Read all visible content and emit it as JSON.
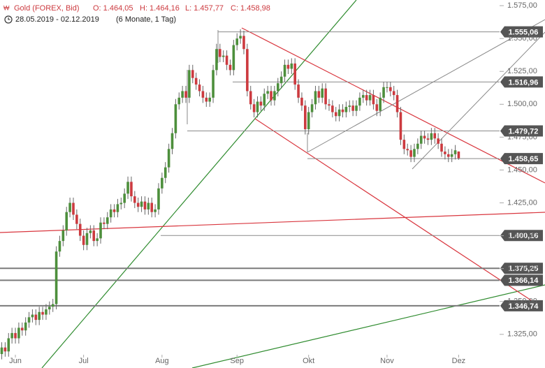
{
  "chart_data": {
    "type": "candlestick",
    "header": {
      "title": "Gold (FOREX, Bid)",
      "open": "O: 1.464,05",
      "high": "H: 1.464,16",
      "low": "L: 1.457,77",
      "close": "C: 1.458,98",
      "range": "28.05.2019 - 02.12.2019",
      "period": "(6 Monate, 1 Tag)"
    },
    "categories": [
      null,
      null,
      null,
      null,
      "Jun",
      null,
      null,
      null,
      null,
      null,
      null,
      null,
      null,
      null,
      null,
      null,
      null,
      null,
      null,
      null,
      null,
      null,
      null,
      null,
      "Jul",
      null,
      null,
      null,
      null,
      null,
      null,
      null,
      null,
      null,
      null,
      null,
      null,
      null,
      null,
      null,
      null,
      null,
      null,
      null,
      null,
      null,
      null,
      "Aug",
      null,
      null,
      null,
      null,
      null,
      null,
      null,
      null,
      null,
      null,
      null,
      null,
      null,
      null,
      null,
      null,
      null,
      null,
      null,
      null,
      null,
      "Sep",
      null,
      null,
      null,
      null,
      null,
      null,
      null,
      null,
      null,
      null,
      null,
      null,
      null,
      null,
      null,
      null,
      null,
      null,
      null,
      null,
      "Okt",
      null,
      null,
      null,
      null,
      null,
      null,
      null,
      null,
      null,
      null,
      null,
      null,
      null,
      null,
      null,
      null,
      null,
      null,
      null,
      null,
      null,
      null,
      "Nov",
      null,
      null,
      null,
      null,
      null,
      null,
      null,
      null,
      null,
      null,
      null,
      null,
      null,
      null,
      null,
      null,
      null,
      null,
      null,
      null,
      "Dez"
    ],
    "ohlc": [
      [
        1310,
        1319,
        1306,
        1315
      ],
      [
        1315,
        1319,
        1308,
        1312
      ],
      [
        1312,
        1326,
        1308,
        1322
      ],
      [
        1322,
        1330,
        1318,
        1326
      ],
      [
        1326,
        1330,
        1318,
        1322
      ],
      [
        1322,
        1334,
        1318,
        1330
      ],
      [
        1330,
        1334,
        1324,
        1328
      ],
      [
        1328,
        1338,
        1324,
        1334
      ],
      [
        1334,
        1342,
        1330,
        1338
      ],
      [
        1338,
        1344,
        1334,
        1340
      ],
      [
        1340,
        1344,
        1332,
        1336
      ],
      [
        1336,
        1346,
        1332,
        1342
      ],
      [
        1342,
        1346,
        1336,
        1340
      ],
      [
        1340,
        1348,
        1336,
        1344
      ],
      [
        1344,
        1350,
        1340,
        1346
      ],
      [
        1346,
        1352,
        1342,
        1348
      ],
      [
        1348,
        1392,
        1344,
        1388
      ],
      [
        1388,
        1400,
        1384,
        1396
      ],
      [
        1396,
        1408,
        1392,
        1404
      ],
      [
        1404,
        1422,
        1400,
        1418
      ],
      [
        1418,
        1429,
        1414,
        1425
      ],
      [
        1425,
        1429,
        1412,
        1416
      ],
      [
        1416,
        1420,
        1405,
        1409
      ],
      [
        1409,
        1413,
        1396,
        1400
      ],
      [
        1400,
        1404,
        1389,
        1393
      ],
      [
        1393,
        1406,
        1389,
        1402
      ],
      [
        1402,
        1408,
        1398,
        1404
      ],
      [
        1404,
        1408,
        1392,
        1396
      ],
      [
        1396,
        1402,
        1392,
        1398
      ],
      [
        1398,
        1414,
        1394,
        1410
      ],
      [
        1410,
        1414,
        1405,
        1409
      ],
      [
        1409,
        1418,
        1405,
        1414
      ],
      [
        1414,
        1424,
        1410,
        1420
      ],
      [
        1420,
        1424,
        1414,
        1418
      ],
      [
        1418,
        1428,
        1414,
        1424
      ],
      [
        1424,
        1429,
        1420,
        1425
      ],
      [
        1425,
        1436,
        1421,
        1432
      ],
      [
        1432,
        1445,
        1428,
        1441
      ],
      [
        1441,
        1445,
        1426,
        1430
      ],
      [
        1430,
        1434,
        1421,
        1425
      ],
      [
        1425,
        1429,
        1418,
        1422
      ],
      [
        1422,
        1430,
        1418,
        1426
      ],
      [
        1426,
        1430,
        1416,
        1420
      ],
      [
        1420,
        1429,
        1416,
        1425
      ],
      [
        1425,
        1429,
        1414,
        1418
      ],
      [
        1418,
        1424,
        1414,
        1420
      ],
      [
        1420,
        1440,
        1416,
        1436
      ],
      [
        1436,
        1448,
        1432,
        1444
      ],
      [
        1444,
        1456,
        1440,
        1452
      ],
      [
        1452,
        1470,
        1448,
        1466
      ],
      [
        1466,
        1482,
        1462,
        1478
      ],
      [
        1478,
        1504,
        1474,
        1500
      ],
      [
        1500,
        1509,
        1496,
        1505
      ],
      [
        1505,
        1514,
        1501,
        1510
      ],
      [
        1510,
        1514,
        1501,
        1505
      ],
      [
        1505,
        1530,
        1501,
        1526
      ],
      [
        1526,
        1530,
        1516,
        1520
      ],
      [
        1520,
        1524,
        1511,
        1515
      ],
      [
        1515,
        1519,
        1506,
        1510
      ],
      [
        1510,
        1514,
        1501,
        1505
      ],
      [
        1505,
        1509,
        1498,
        1502
      ],
      [
        1502,
        1509,
        1498,
        1505
      ],
      [
        1505,
        1530,
        1501,
        1526
      ],
      [
        1526,
        1546,
        1522,
        1542
      ],
      [
        1542,
        1546,
        1532,
        1536
      ],
      [
        1536,
        1541,
        1532,
        1537
      ],
      [
        1537,
        1541,
        1526,
        1530
      ],
      [
        1530,
        1534,
        1522,
        1526
      ],
      [
        1526,
        1549,
        1522,
        1545
      ],
      [
        1545,
        1554,
        1541,
        1550
      ],
      [
        1550,
        1557,
        1546,
        1552
      ],
      [
        1552,
        1556,
        1538,
        1542
      ],
      [
        1542,
        1546,
        1506,
        1510
      ],
      [
        1510,
        1514,
        1496,
        1500
      ],
      [
        1500,
        1504,
        1490,
        1494
      ],
      [
        1494,
        1506,
        1490,
        1502
      ],
      [
        1502,
        1506,
        1495,
        1499
      ],
      [
        1499,
        1512,
        1495,
        1508
      ],
      [
        1508,
        1514,
        1504,
        1510
      ],
      [
        1510,
        1514,
        1499,
        1503
      ],
      [
        1503,
        1514,
        1499,
        1510
      ],
      [
        1510,
        1520,
        1506,
        1516
      ],
      [
        1516,
        1525,
        1512,
        1521
      ],
      [
        1521,
        1534,
        1517,
        1530
      ],
      [
        1530,
        1534,
        1523,
        1527
      ],
      [
        1527,
        1535,
        1523,
        1531
      ],
      [
        1531,
        1535,
        1511,
        1515
      ],
      [
        1515,
        1519,
        1501,
        1505
      ],
      [
        1505,
        1509,
        1495,
        1499
      ],
      [
        1499,
        1503,
        1477,
        1481
      ],
      [
        1481,
        1498,
        1477,
        1494
      ],
      [
        1494,
        1504,
        1490,
        1500
      ],
      [
        1500,
        1514,
        1496,
        1510
      ],
      [
        1510,
        1514,
        1501,
        1505
      ],
      [
        1505,
        1516,
        1501,
        1512
      ],
      [
        1512,
        1516,
        1496,
        1500
      ],
      [
        1500,
        1504,
        1495,
        1499
      ],
      [
        1499,
        1503,
        1490,
        1494
      ],
      [
        1494,
        1498,
        1487,
        1491
      ],
      [
        1491,
        1500,
        1487,
        1496
      ],
      [
        1496,
        1500,
        1490,
        1494
      ],
      [
        1494,
        1502,
        1490,
        1498
      ],
      [
        1498,
        1503,
        1494,
        1499
      ],
      [
        1499,
        1503,
        1491,
        1495
      ],
      [
        1495,
        1503,
        1491,
        1499
      ],
      [
        1499,
        1509,
        1495,
        1505
      ],
      [
        1505,
        1511,
        1501,
        1507
      ],
      [
        1507,
        1511,
        1499,
        1503
      ],
      [
        1503,
        1511,
        1499,
        1507
      ],
      [
        1507,
        1511,
        1496,
        1500
      ],
      [
        1500,
        1504,
        1491,
        1495
      ],
      [
        1495,
        1509,
        1491,
        1505
      ],
      [
        1505,
        1517,
        1501,
        1513
      ],
      [
        1513,
        1517,
        1509,
        1513
      ],
      [
        1513,
        1517,
        1506,
        1510
      ],
      [
        1510,
        1514,
        1503,
        1507
      ],
      [
        1507,
        1511,
        1490,
        1494
      ],
      [
        1494,
        1498,
        1469,
        1473
      ],
      [
        1473,
        1477,
        1462,
        1466
      ],
      [
        1466,
        1470,
        1461,
        1465
      ],
      [
        1465,
        1469,
        1456,
        1460
      ],
      [
        1460,
        1470,
        1456,
        1466
      ],
      [
        1466,
        1474,
        1462,
        1470
      ],
      [
        1470,
        1480,
        1466,
        1476
      ],
      [
        1476,
        1480,
        1470,
        1474
      ],
      [
        1474,
        1478,
        1469,
        1473
      ],
      [
        1473,
        1482,
        1469,
        1478
      ],
      [
        1478,
        1482,
        1470,
        1474
      ],
      [
        1474,
        1478,
        1466,
        1470
      ],
      [
        1470,
        1474,
        1460,
        1464
      ],
      [
        1464,
        1468,
        1458,
        1462
      ],
      [
        1462,
        1466,
        1456,
        1460
      ],
      [
        1460,
        1466,
        1456,
        1462
      ],
      [
        1462,
        1469,
        1458,
        1465
      ],
      [
        1464.05,
        1464.16,
        1457.77,
        1458.98
      ]
    ],
    "up_color": "#4d8f3c",
    "down_color": "#cc3a3f",
    "ylim": [
      1299.4,
      1579.3
    ],
    "yticks": [
      {
        "value": 1325,
        "label": "1.325,00"
      },
      {
        "value": 1350,
        "label": "1.350,00"
      },
      {
        "value": 1375,
        "label": "1.375,00"
      },
      {
        "value": 1400,
        "label": "1.400,00"
      },
      {
        "value": 1425,
        "label": "1.425,00"
      },
      {
        "value": 1450,
        "label": "1.450,00"
      },
      {
        "value": 1475,
        "label": "1.475,00"
      },
      {
        "value": 1500,
        "label": "1.500,00"
      },
      {
        "value": 1525,
        "label": "1.525,00"
      },
      {
        "value": 1550,
        "label": "1.550,00"
      },
      {
        "value": 1575,
        "label": "1.575,00"
      }
    ],
    "levels": [
      {
        "value": 1555.06,
        "label": "1.555,06"
      },
      {
        "value": 1516.96,
        "label": "1.516,96"
      },
      {
        "value": 1479.72,
        "label": "1.479,72"
      },
      {
        "value": 1458.65,
        "label": "1.458,65"
      },
      {
        "value": 1400.16,
        "label": "1.400,16"
      },
      {
        "value": 1375.25,
        "label": "1.375,25"
      },
      {
        "value": 1366.14,
        "label": "1.366,14"
      },
      {
        "value": 1346.74,
        "label": "1.346,74"
      }
    ]
  }
}
